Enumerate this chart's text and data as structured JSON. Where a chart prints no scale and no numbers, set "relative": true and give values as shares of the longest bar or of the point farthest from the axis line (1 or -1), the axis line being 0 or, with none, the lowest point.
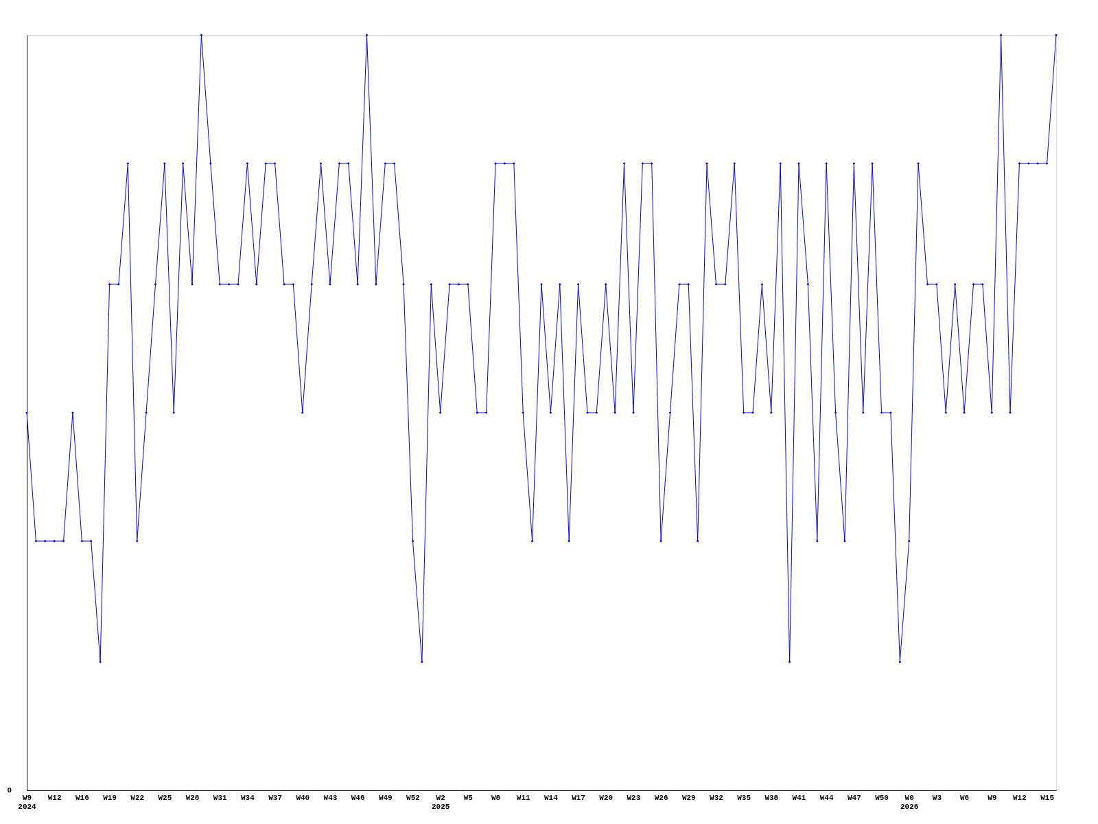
{
  "chart_data": {
    "type": "line",
    "relative": true,
    "marker": "diamond",
    "grid": false,
    "categories": [
      "W9\n2024",
      null,
      null,
      "W12",
      null,
      null,
      "W16",
      null,
      null,
      "W19",
      null,
      null,
      "W22",
      null,
      null,
      "W25",
      null,
      null,
      "W28",
      null,
      null,
      "W31",
      null,
      null,
      "W34",
      null,
      null,
      "W37",
      null,
      null,
      "W40",
      null,
      null,
      "W43",
      null,
      null,
      "W46",
      null,
      null,
      "W49",
      null,
      null,
      "W52",
      null,
      null,
      "W2\n2025",
      null,
      null,
      "W5",
      null,
      null,
      "W8",
      null,
      null,
      "W11",
      null,
      null,
      "W14",
      null,
      null,
      "W17",
      null,
      null,
      "W20",
      null,
      null,
      "W23",
      null,
      null,
      "W26",
      null,
      null,
      "W29",
      null,
      null,
      "W32",
      null,
      null,
      "W35",
      null,
      null,
      "W38",
      null,
      null,
      "W41",
      null,
      null,
      "W44",
      null,
      null,
      "W47",
      null,
      null,
      "W50",
      null,
      null,
      "W0\n2026",
      null,
      null,
      "W3",
      null,
      null,
      "W6",
      null,
      null,
      "W9",
      null,
      null,
      "W12",
      null,
      null,
      "W15",
      null
    ],
    "series": [
      {
        "color": "#0000ff",
        "values": [
          0.5,
          0.33,
          0.33,
          0.33,
          0.33,
          0.5,
          0.33,
          0.33,
          0.17,
          0.67,
          0.67,
          0.83,
          0.33,
          0.5,
          0.67,
          0.83,
          0.5,
          0.83,
          0.67,
          1,
          0.83,
          0.67,
          0.67,
          0.67,
          0.83,
          0.67,
          0.83,
          0.83,
          0.67,
          0.67,
          0.5,
          0.67,
          0.83,
          0.67,
          0.83,
          0.83,
          0.67,
          1,
          0.67,
          0.83,
          0.83,
          0.67,
          0.33,
          0.17,
          0.67,
          0.5,
          0.67,
          0.67,
          0.67,
          0.5,
          0.5,
          0.83,
          0.83,
          0.83,
          0.5,
          0.33,
          0.67,
          0.5,
          0.67,
          0.33,
          0.67,
          0.5,
          0.5,
          0.67,
          0.5,
          0.83,
          0.5,
          0.83,
          0.83,
          0.33,
          0.5,
          0.67,
          0.67,
          0.33,
          0.83,
          0.67,
          0.67,
          0.83,
          0.5,
          0.5,
          0.67,
          0.5,
          0.83,
          0.17,
          0.83,
          0.67,
          0.33,
          0.83,
          0.5,
          0.33,
          0.83,
          0.5,
          0.83,
          0.5,
          0.5,
          0.17,
          0.33,
          0.83,
          0.67,
          0.67,
          0.5,
          0.67,
          0.5,
          0.67,
          0.67,
          0.5,
          1,
          0.5,
          0.83,
          0.83,
          0.83,
          0.83,
          1
        ]
      }
    ],
    "annotations": [
      "0"
    ]
  }
}
